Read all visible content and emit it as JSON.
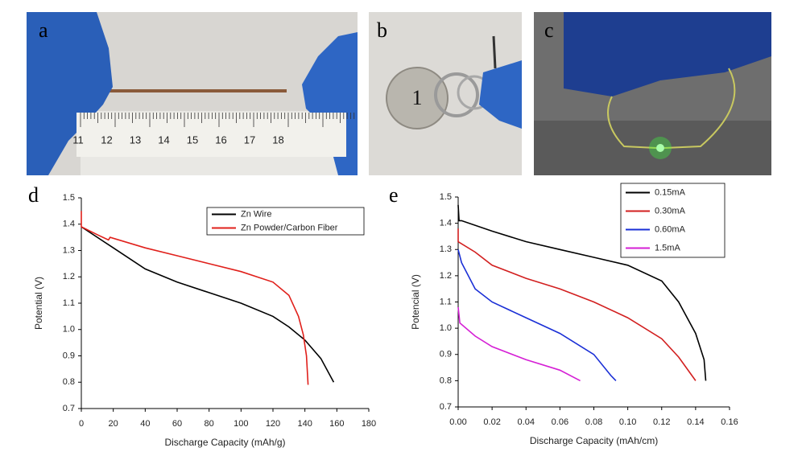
{
  "panels": [
    {
      "label": "a",
      "ruler_labels": [
        "11",
        "12",
        "13",
        "14",
        "15",
        "16",
        "17",
        "18"
      ]
    },
    {
      "label": "b",
      "coin_text": "1"
    },
    {
      "label": "c"
    }
  ],
  "chart_data": [
    {
      "type": "line",
      "panel_label": "d",
      "x_label": "Discharge Capacity (mAh/g)",
      "y_label": "Potential (V)",
      "xlim": [
        0,
        180
      ],
      "xticks": [
        0,
        20,
        40,
        60,
        80,
        100,
        120,
        140,
        160,
        180
      ],
      "ylim": [
        0.7,
        1.5
      ],
      "yticks": [
        0.7,
        0.8,
        0.9,
        {
          "value": 1.0,
          "label": "1.0"
        },
        1.1,
        1.2,
        1.3,
        1.4,
        1.5
      ],
      "legend": "upper right",
      "series": [
        {
          "name": "Zn Wire",
          "color": "#000000",
          "x": [
            0,
            20,
            40,
            60,
            80,
            100,
            120,
            130,
            140,
            150,
            158
          ],
          "values": [
            1.39,
            1.31,
            1.23,
            1.18,
            1.14,
            1.1,
            1.05,
            1.01,
            0.96,
            0.89,
            0.8
          ]
        },
        {
          "name": "Zn Powder/Carbon Fiber",
          "color": "#e0201b",
          "x": [
            0,
            0,
            10,
            17,
            18,
            40,
            60,
            80,
            100,
            120,
            130,
            136,
            139,
            141,
            142
          ],
          "values": [
            1.45,
            1.39,
            1.36,
            1.34,
            1.35,
            1.31,
            1.28,
            1.25,
            1.22,
            1.18,
            1.13,
            1.05,
            0.98,
            0.9,
            0.79
          ]
        }
      ]
    },
    {
      "type": "line",
      "panel_label": "e",
      "x_label": "Discharge Capacity (mAh/cm)",
      "y_label": "Potencial (V)",
      "xlim": [
        0,
        0.16
      ],
      "xticks": [
        {
          "value": 0,
          "label": "0.00"
        },
        0.02,
        0.04,
        0.06,
        0.08,
        {
          "value": 0.1,
          "label": "0.10"
        },
        0.12,
        0.14,
        0.16
      ],
      "ylim": [
        0.7,
        1.5
      ],
      "yticks": [
        0.7,
        0.8,
        0.9,
        {
          "value": 1.0,
          "label": "1.0"
        },
        1.1,
        1.2,
        1.3,
        1.4,
        1.5
      ],
      "legend": "upper right",
      "series": [
        {
          "name": "0.15mA",
          "color": "#000000",
          "x": [
            0,
            0.0005,
            0.002,
            0.02,
            0.04,
            0.06,
            0.08,
            0.1,
            0.12,
            0.13,
            0.14,
            0.145,
            0.146
          ],
          "values": [
            1.47,
            1.41,
            1.41,
            1.37,
            1.33,
            1.3,
            1.27,
            1.24,
            1.18,
            1.1,
            0.98,
            0.88,
            0.8
          ]
        },
        {
          "name": "0.30mA",
          "color": "#d21f1f",
          "x": [
            0,
            0,
            0.01,
            0.02,
            0.04,
            0.06,
            0.08,
            0.1,
            0.12,
            0.13,
            0.14
          ],
          "values": [
            1.38,
            1.33,
            1.29,
            1.24,
            1.19,
            1.15,
            1.1,
            1.04,
            0.96,
            0.89,
            0.8
          ]
        },
        {
          "name": "0.60mA",
          "color": "#1a2fd6",
          "x": [
            0,
            0.002,
            0.01,
            0.02,
            0.04,
            0.06,
            0.08,
            0.09,
            0.093
          ],
          "values": [
            1.3,
            1.25,
            1.15,
            1.1,
            1.04,
            0.98,
            0.9,
            0.82,
            0.8
          ]
        },
        {
          "name": "1.5mA",
          "color": "#d51fd5",
          "x": [
            0,
            0.001,
            0.01,
            0.02,
            0.04,
            0.06,
            0.072
          ],
          "values": [
            1.08,
            1.02,
            0.97,
            0.93,
            0.88,
            0.84,
            0.8
          ]
        }
      ]
    }
  ]
}
